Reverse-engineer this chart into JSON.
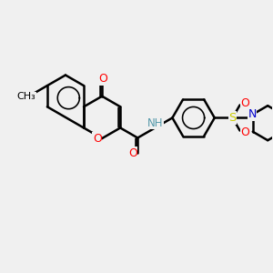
{
  "bg_color": "#f0f0f0",
  "bond_color": "#000000",
  "bond_width": 1.8,
  "atom_colors": {
    "O": "#ff0000",
    "N": "#0000cc",
    "S": "#cccc00",
    "NH_color": "#5599aa",
    "C": "#000000",
    "CH3_color": "#000000"
  },
  "font_size": 8.5,
  "fig_size": [
    3.0,
    3.0
  ],
  "dpi": 100,
  "bl": 0.78
}
